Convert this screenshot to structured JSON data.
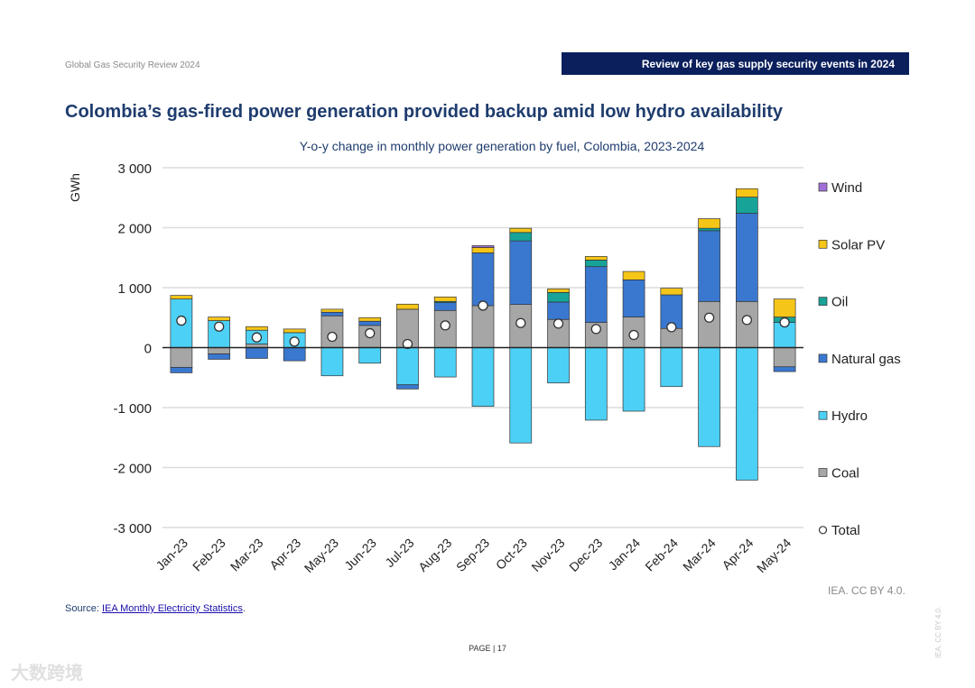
{
  "header": {
    "left": "Global Gas Security Review 2024",
    "right": "Review of key gas supply security events in 2024"
  },
  "title": "Colombia’s gas-fired power generation provided backup amid low hydro availability",
  "footer": {
    "source_prefix": "Source: ",
    "source_link": "IEA Monthly Electricity Statistics",
    "source_suffix": ".",
    "credit": "IEA. CC BY 4.0.",
    "page": "PAGE | 17",
    "side": "IEA. CC BY 4.0.",
    "watermark": "大数跨境"
  },
  "chart_data": {
    "type": "bar",
    "stacked": true,
    "title": "Y-o-y change in monthly power generation by fuel, Colombia, 2023-2024",
    "ylabel": "GWh",
    "xlabel": "",
    "ylim": [
      -3000,
      3000
    ],
    "yticks": [
      3000,
      2000,
      1000,
      0,
      -1000,
      -2000,
      -3000
    ],
    "ytick_labels": [
      "3 000",
      "2 000",
      "1 000",
      "0",
      "-1 000",
      "-2 000",
      "-3 000"
    ],
    "grid": true,
    "legend_position": "right",
    "categories": [
      "Jan-23",
      "Feb-23",
      "Mar-23",
      "Apr-23",
      "May-23",
      "Jun-23",
      "Jul-23",
      "Aug-23",
      "Sep-23",
      "Oct-23",
      "Nov-23",
      "Dec-23",
      "Jan-24",
      "Feb-24",
      "Mar-24",
      "Apr-24",
      "May-24"
    ],
    "series": [
      {
        "name": "Coal",
        "color": "#a6a6a6",
        "values": [
          -330,
          -105,
          60,
          0,
          530,
          370,
          640,
          620,
          700,
          720,
          470,
          420,
          510,
          320,
          770,
          770,
          -320
        ]
      },
      {
        "name": "Hydro",
        "color": "#4dd0f5",
        "values": [
          810,
          450,
          230,
          250,
          -470,
          -260,
          -620,
          -490,
          -980,
          -1590,
          -590,
          -1210,
          -1060,
          -650,
          -1650,
          -2210,
          420
        ]
      },
      {
        "name": "Natural gas",
        "color": "#3a78d0",
        "values": [
          -90,
          -90,
          -180,
          -220,
          60,
          70,
          -70,
          130,
          880,
          1060,
          290,
          930,
          620,
          560,
          1180,
          1470,
          -80
        ]
      },
      {
        "name": "Oil",
        "color": "#17a398",
        "values": [
          0,
          0,
          0,
          0,
          0,
          0,
          0,
          20,
          0,
          140,
          160,
          110,
          0,
          0,
          40,
          270,
          90
        ]
      },
      {
        "name": "Solar PV",
        "color": "#f5c518",
        "values": [
          60,
          60,
          60,
          60,
          50,
          60,
          85,
          75,
          90,
          70,
          60,
          60,
          140,
          110,
          160,
          140,
          300
        ]
      },
      {
        "name": "Wind",
        "color": "#a070d8",
        "values": [
          0,
          0,
          0,
          0,
          0,
          0,
          0,
          0,
          30,
          0,
          0,
          0,
          0,
          0,
          0,
          0,
          0
        ]
      }
    ],
    "total": {
      "name": "Total",
      "values": [
        450,
        350,
        170,
        100,
        180,
        240,
        60,
        370,
        700,
        410,
        400,
        310,
        210,
        340,
        500,
        460,
        420
      ]
    },
    "legend_order": [
      "Wind",
      "Solar PV",
      "Oil",
      "Natural gas",
      "Hydro",
      "Coal",
      "Total"
    ]
  }
}
